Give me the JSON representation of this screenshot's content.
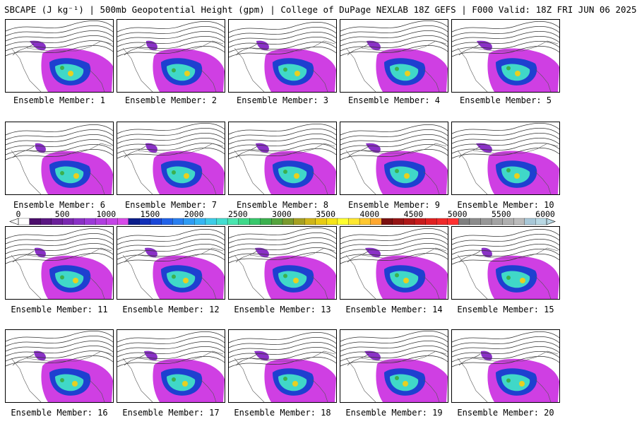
{
  "title": "SBCAPE (J kg⁻¹) | 500mb Geopotential Height (gpm) | College of DuPage NEXLAB 18Z GEFS | F000 Valid: 18Z FRI JUN 06 2025",
  "panels": [
    {
      "label": "Ensemble Member: 1"
    },
    {
      "label": "Ensemble Member: 2"
    },
    {
      "label": "Ensemble Member: 3"
    },
    {
      "label": "Ensemble Member: 4"
    },
    {
      "label": "Ensemble Member: 5"
    },
    {
      "label": "Ensemble Member: 6"
    },
    {
      "label": "Ensemble Member: 7"
    },
    {
      "label": "Ensemble Member: 8"
    },
    {
      "label": "Ensemble Member: 9"
    },
    {
      "label": "Ensemble Member: 10"
    },
    {
      "label": "Ensemble Member: 11"
    },
    {
      "label": "Ensemble Member: 12"
    },
    {
      "label": "Ensemble Member: 13"
    },
    {
      "label": "Ensemble Member: 14"
    },
    {
      "label": "Ensemble Member: 15"
    },
    {
      "label": "Ensemble Member: 16"
    },
    {
      "label": "Ensemble Member: 17"
    },
    {
      "label": "Ensemble Member: 18"
    },
    {
      "label": "Ensemble Member: 19"
    },
    {
      "label": "Ensemble Member: 20"
    }
  ],
  "colorbar": {
    "tick_labels": [
      "0",
      "500",
      "1000",
      "1500",
      "2000",
      "2500",
      "3000",
      "3500",
      "4000",
      "4500",
      "5000",
      "5500",
      "6000"
    ],
    "colors": [
      "#ffffff",
      "#4b0d6b",
      "#5a1682",
      "#6a1f99",
      "#7a28b0",
      "#8a31c6",
      "#9c3ad8",
      "#b03fe0",
      "#c445e6",
      "#d84bea",
      "#0b1d8a",
      "#1230b8",
      "#1a47d8",
      "#2262e8",
      "#2a7ff0",
      "#2f9cf4",
      "#36b6f4",
      "#3dcde8",
      "#44ddd0",
      "#4ae6b0",
      "#3fd98a",
      "#38c86c",
      "#3bb04e",
      "#55a43e",
      "#7a9a2e",
      "#a6a022",
      "#cfb51a",
      "#e8cc14",
      "#f6e418",
      "#ffff30",
      "#ffe830",
      "#ffc830",
      "#ffa830",
      "#7a1010",
      "#941414",
      "#ae1818",
      "#c81c1c",
      "#e02020",
      "#f02a2a",
      "#ff3030",
      "#808080",
      "#8c8c8c",
      "#989898",
      "#a4a4a4",
      "#b0b0b0",
      "#bcbcbc",
      "#a8c8d8",
      "#b8d8e4"
    ],
    "land_shade": "#cf3fe3",
    "mid_shade": "#1e40d0",
    "high_shade": "#40d8c8",
    "peak_shade": "#e8d020"
  }
}
